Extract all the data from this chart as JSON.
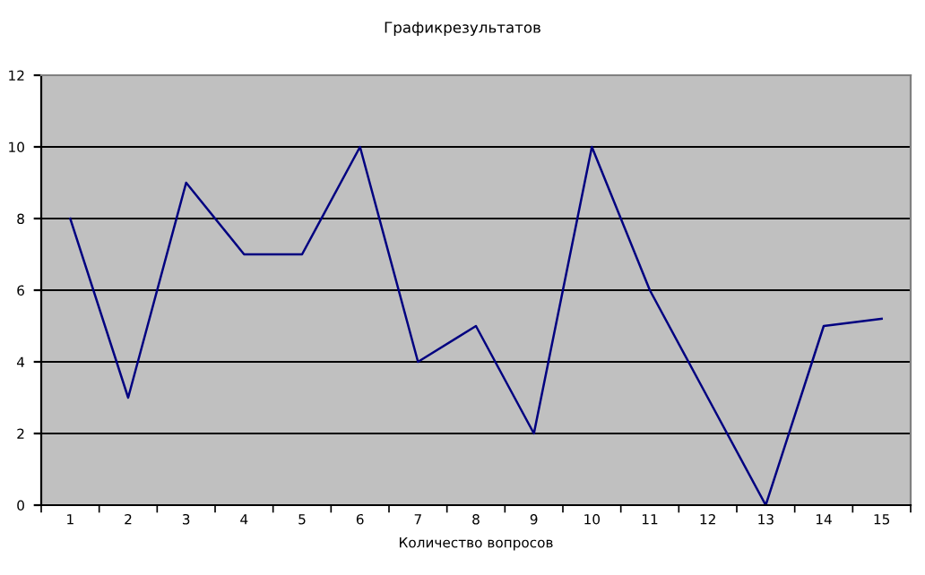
{
  "chart_data": {
    "type": "line",
    "title": "Графикрезультатов",
    "xlabel": "Количество вопросов",
    "categories": [
      "1",
      "2",
      "3",
      "4",
      "5",
      "6",
      "7",
      "8",
      "9",
      "10",
      "11",
      "12",
      "13",
      "14",
      "15"
    ],
    "series": [
      {
        "color": "#000080",
        "values": [
          8,
          3,
          9,
          7,
          7,
          10,
          4,
          5,
          2,
          10,
          6,
          3,
          0,
          5,
          5.2
        ]
      }
    ],
    "ylim": [
      0,
      12
    ],
    "yticks": [
      0,
      2,
      4,
      6,
      8,
      10,
      12
    ],
    "grid": "y",
    "marker": "none",
    "line_style": "solid"
  }
}
